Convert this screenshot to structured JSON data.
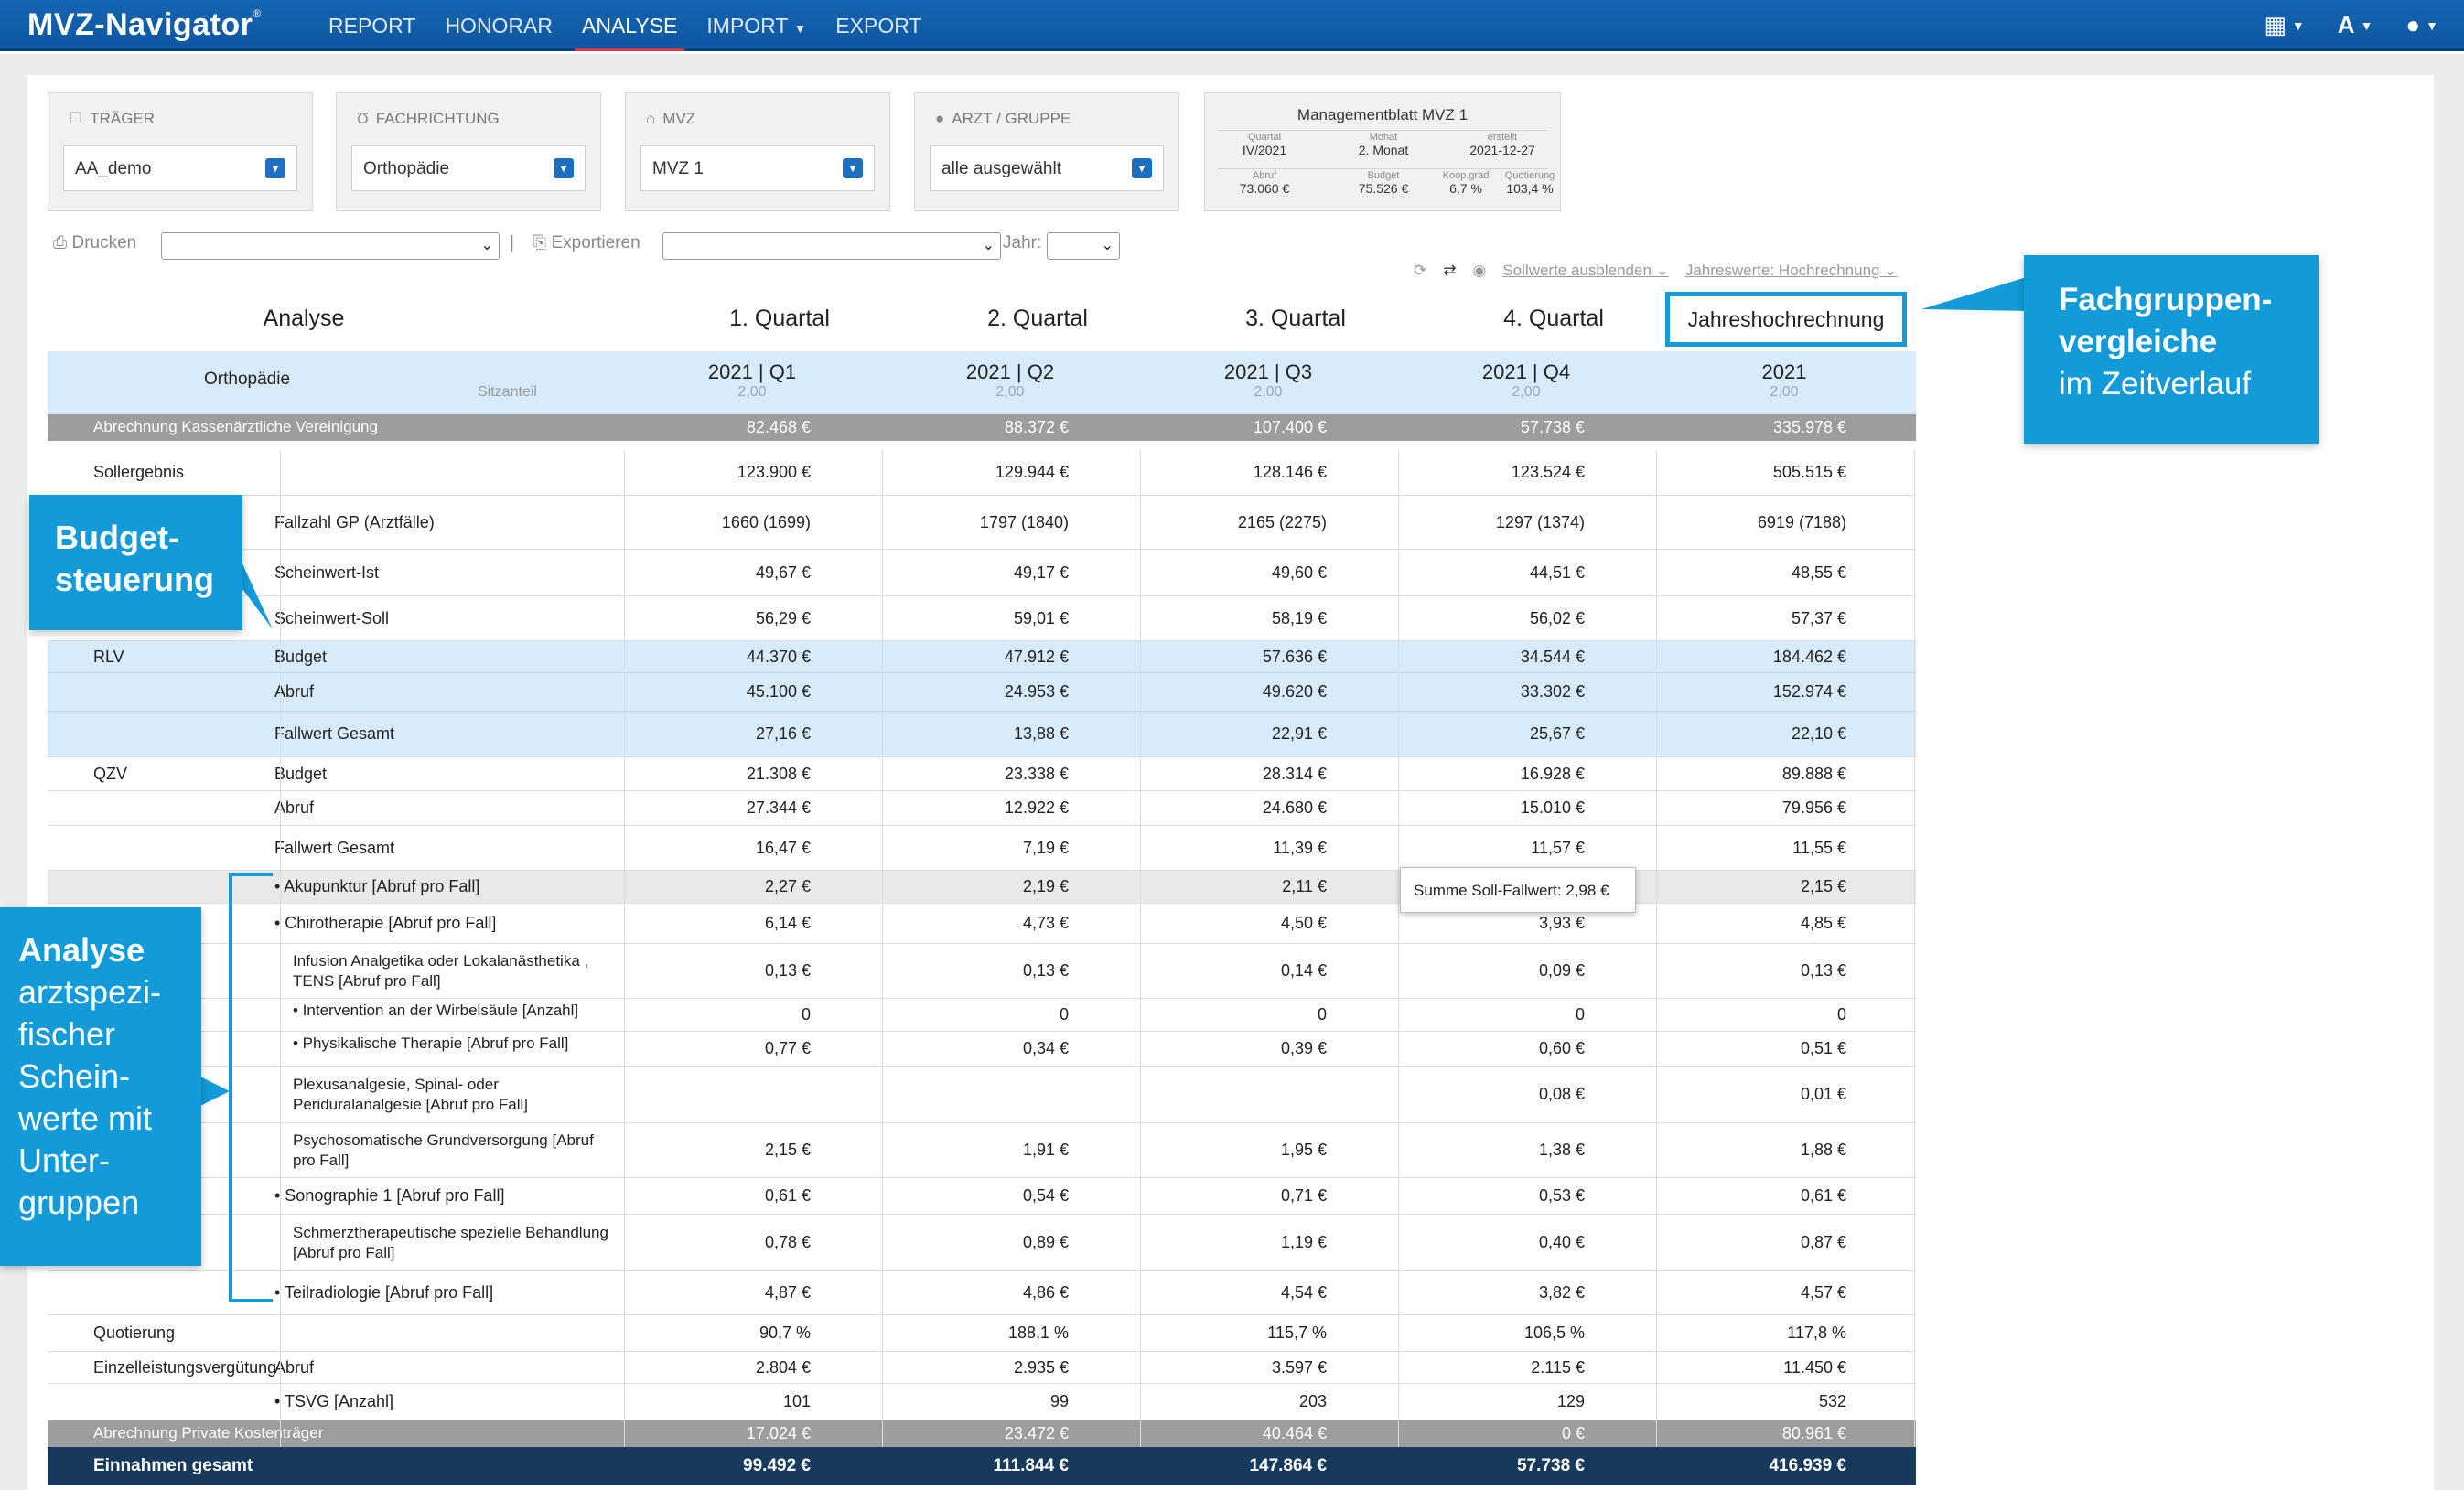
{
  "app": {
    "logo": "MVZ-Navigator",
    "logo_mark": "®",
    "nav": [
      {
        "label": "REPORT"
      },
      {
        "label": "HONORAR"
      },
      {
        "label": "ANALYSE"
      },
      {
        "label": "IMPORT"
      },
      {
        "label": "EXPORT"
      }
    ],
    "right_icons": [
      "grid-icon",
      "font-size-icon",
      "user-icon"
    ],
    "font_icon_label": "A",
    "accent_color": "#139ad8",
    "brand_color": "#1565b4"
  },
  "filters": {
    "traeger": {
      "label": "TRÄGER",
      "value": "AA_demo"
    },
    "fachrichtung": {
      "label": "FACHRICHTUNG",
      "value": "Orthopädie"
    },
    "mvz": {
      "label": "MVZ",
      "value": "MVZ 1"
    },
    "arzt": {
      "label": "ARZT / GRUPPE",
      "value": "alle ausgewählt"
    }
  },
  "management": {
    "title": "Managementblatt MVZ 1",
    "quartal_label": "Quartal",
    "quartal": "IV/2021",
    "monat_label": "Monat",
    "monat": "2. Monat",
    "erstellt_label": "erstellt",
    "erstellt": "2021-12-27",
    "abruf_label": "Abruf",
    "abruf": "73.060 €",
    "budget_label": "Budget",
    "budget": "75.526 €",
    "koop_label": "Koop.grad",
    "koop": "6,7 %",
    "quot_label": "Quotierung",
    "quot": "103,4 %"
  },
  "toolbar": {
    "drucken": "Drucken",
    "sep": "|",
    "exportieren": "Exportieren",
    "jahr": "Jahr:",
    "sollwerte": "Sollwerte ausblenden",
    "jahreswerte": "Jahreswerte: Hochrechnung"
  },
  "table": {
    "head": [
      "Analyse",
      "1. Quartal",
      "2. Quartal",
      "3. Quartal",
      "4. Quartal",
      "Jahreshochrechnung"
    ],
    "fach": "Orthopädie",
    "sitz": "Sitzanteil",
    "periods": [
      {
        "label": "2021 | Q1",
        "sitz": "2,00"
      },
      {
        "label": "2021 | Q2",
        "sitz": "2,00"
      },
      {
        "label": "2021 | Q3",
        "sitz": "2,00"
      },
      {
        "label": "2021 | Q4",
        "sitz": "2,00"
      },
      {
        "label": "2021",
        "sitz": "2,00"
      }
    ],
    "rows": [
      {
        "c1": "Abrechnung Kassenärztliche Vereinigung",
        "c2": "",
        "v": [
          "82.468 €",
          "88.372 €",
          "107.400 €",
          "57.738 €",
          "335.978 €"
        ]
      },
      {
        "c1": "Sollergebnis",
        "c2": "",
        "v": [
          "123.900 €",
          "129.944 €",
          "128.146 €",
          "123.524 €",
          "505.515 €"
        ]
      },
      {
        "c1": "",
        "c2": "Fallzahl GP (Arztfälle)",
        "v": [
          "1660 (1699)",
          "1797 (1840)",
          "2165 (2275)",
          "1297 (1374)",
          "6919 (7188)"
        ]
      },
      {
        "c1": "",
        "c2": "Scheinwert-Ist",
        "v": [
          "49,67 €",
          "49,17 €",
          "49,60 €",
          "44,51 €",
          "48,55 €"
        ]
      },
      {
        "c1": "",
        "c2": "Scheinwert-Soll",
        "v": [
          "56,29 €",
          "59,01 €",
          "58,19 €",
          "56,02 €",
          "57,37 €"
        ]
      },
      {
        "c1": "RLV",
        "c2": "Budget",
        "v": [
          "44.370 €",
          "47.912 €",
          "57.636 €",
          "34.544 €",
          "184.462 €"
        ]
      },
      {
        "c1": "",
        "c2": "Abruf",
        "v": [
          "45.100 €",
          "24.953 €",
          "49.620 €",
          "33.302 €",
          "152.974 €"
        ]
      },
      {
        "c1": "",
        "c2": "Fallwert Gesamt",
        "v": [
          "27,16 €",
          "13,88 €",
          "22,91 €",
          "25,67 €",
          "22,10 €"
        ]
      },
      {
        "c1": "QZV",
        "c2": "Budget",
        "v": [
          "21.308 €",
          "23.338 €",
          "28.314 €",
          "16.928 €",
          "89.888 €"
        ]
      },
      {
        "c1": "",
        "c2": "Abruf",
        "v": [
          "27.344 €",
          "12.922 €",
          "24.680 €",
          "15.010 €",
          "79.956 €"
        ]
      },
      {
        "c1": "",
        "c2": "Fallwert Gesamt",
        "v": [
          "16,47 €",
          "7,19 €",
          "11,39 €",
          "11,57 €",
          "11,55 €"
        ]
      },
      {
        "c1": "",
        "c2": "• Akupunktur [Abruf pro Fall]",
        "v": [
          "2,27 €",
          "2,19 €",
          "2,11 €",
          "€",
          "2,15 €"
        ]
      },
      {
        "c1": "",
        "c2": "• Chirotherapie [Abruf pro Fall]",
        "v": [
          "6,14 €",
          "4,73 €",
          "4,50 €",
          "3,93 €",
          "4,85 €"
        ]
      },
      {
        "c1": "",
        "c2": "Infusion Analgetika oder Lokalanästhetika , TENS [Abruf pro Fall]",
        "v": [
          "0,13 €",
          "0,13 €",
          "0,14 €",
          "0,09 €",
          "0,13 €"
        ]
      },
      {
        "c1": "",
        "c2": "• Intervention an der Wirbelsäule [Anzahl]",
        "v": [
          "0",
          "0",
          "0",
          "0",
          "0"
        ]
      },
      {
        "c1": "",
        "c2": "• Physikalische Therapie [Abruf pro Fall]",
        "v": [
          "0,77 €",
          "0,34 €",
          "0,39 €",
          "0,60 €",
          "0,51 €"
        ]
      },
      {
        "c1": "",
        "c2": "Plexusanalgesie, Spinal- oder Periduralanalgesie [Abruf pro Fall]",
        "v": [
          "",
          "",
          "",
          "0,08 €",
          "0,01 €"
        ]
      },
      {
        "c1": "",
        "c2": "Psychosomatische Grundversorgung [Abruf pro Fall]",
        "v": [
          "2,15 €",
          "1,91 €",
          "1,95 €",
          "1,38 €",
          "1,88 €"
        ]
      },
      {
        "c1": "",
        "c2": "• Sonographie 1 [Abruf pro Fall]",
        "v": [
          "0,61 €",
          "0,54 €",
          "0,71 €",
          "0,53 €",
          "0,61 €"
        ]
      },
      {
        "c1": "",
        "c2": "Schmerztherapeutische spezielle Behandlung [Abruf pro Fall]",
        "v": [
          "0,78 €",
          "0,89 €",
          "1,19 €",
          "0,40 €",
          "0,87 €"
        ]
      },
      {
        "c1": "",
        "c2": "• Teilradiologie [Abruf pro Fall]",
        "v": [
          "4,87 €",
          "4,86 €",
          "4,54 €",
          "3,82 €",
          "4,57 €"
        ]
      },
      {
        "c1": "Quotierung",
        "c2": "",
        "v": [
          "90,7 %",
          "188,1 %",
          "115,7 %",
          "106,5 %",
          "117,8 %"
        ]
      },
      {
        "c1": "Einzelleistungsvergütung",
        "c2": "Abruf",
        "v": [
          "2.804 €",
          "2.935 €",
          "3.597 €",
          "2.115 €",
          "11.450 €"
        ]
      },
      {
        "c1": "",
        "c2": "• TSVG [Anzahl]",
        "v": [
          "101",
          "99",
          "203",
          "129",
          "532"
        ]
      },
      {
        "c1": "Abrechnung Private Kostenträger",
        "c2": "",
        "v": [
          "17.024 €",
          "23.472 €",
          "40.464 €",
          "0 €",
          "80.961 €"
        ]
      },
      {
        "c1": "Einnahmen gesamt",
        "c2": "",
        "v": [
          "99.492 €",
          "111.844 €",
          "147.864 €",
          "57.738 €",
          "416.939 €"
        ]
      }
    ]
  },
  "tooltip": "Summe Soll-Fallwert: 2,98 €",
  "callouts": {
    "fach_bold": "Fachgruppen-vergleiche",
    "fach_rest": "im Zeitverlauf",
    "budget_bold": "Budget-steuerung",
    "analyse_bold": "Analyse",
    "analyse_rest": "arztspezi-fischer Schein-werte mit Unter-gruppen"
  }
}
